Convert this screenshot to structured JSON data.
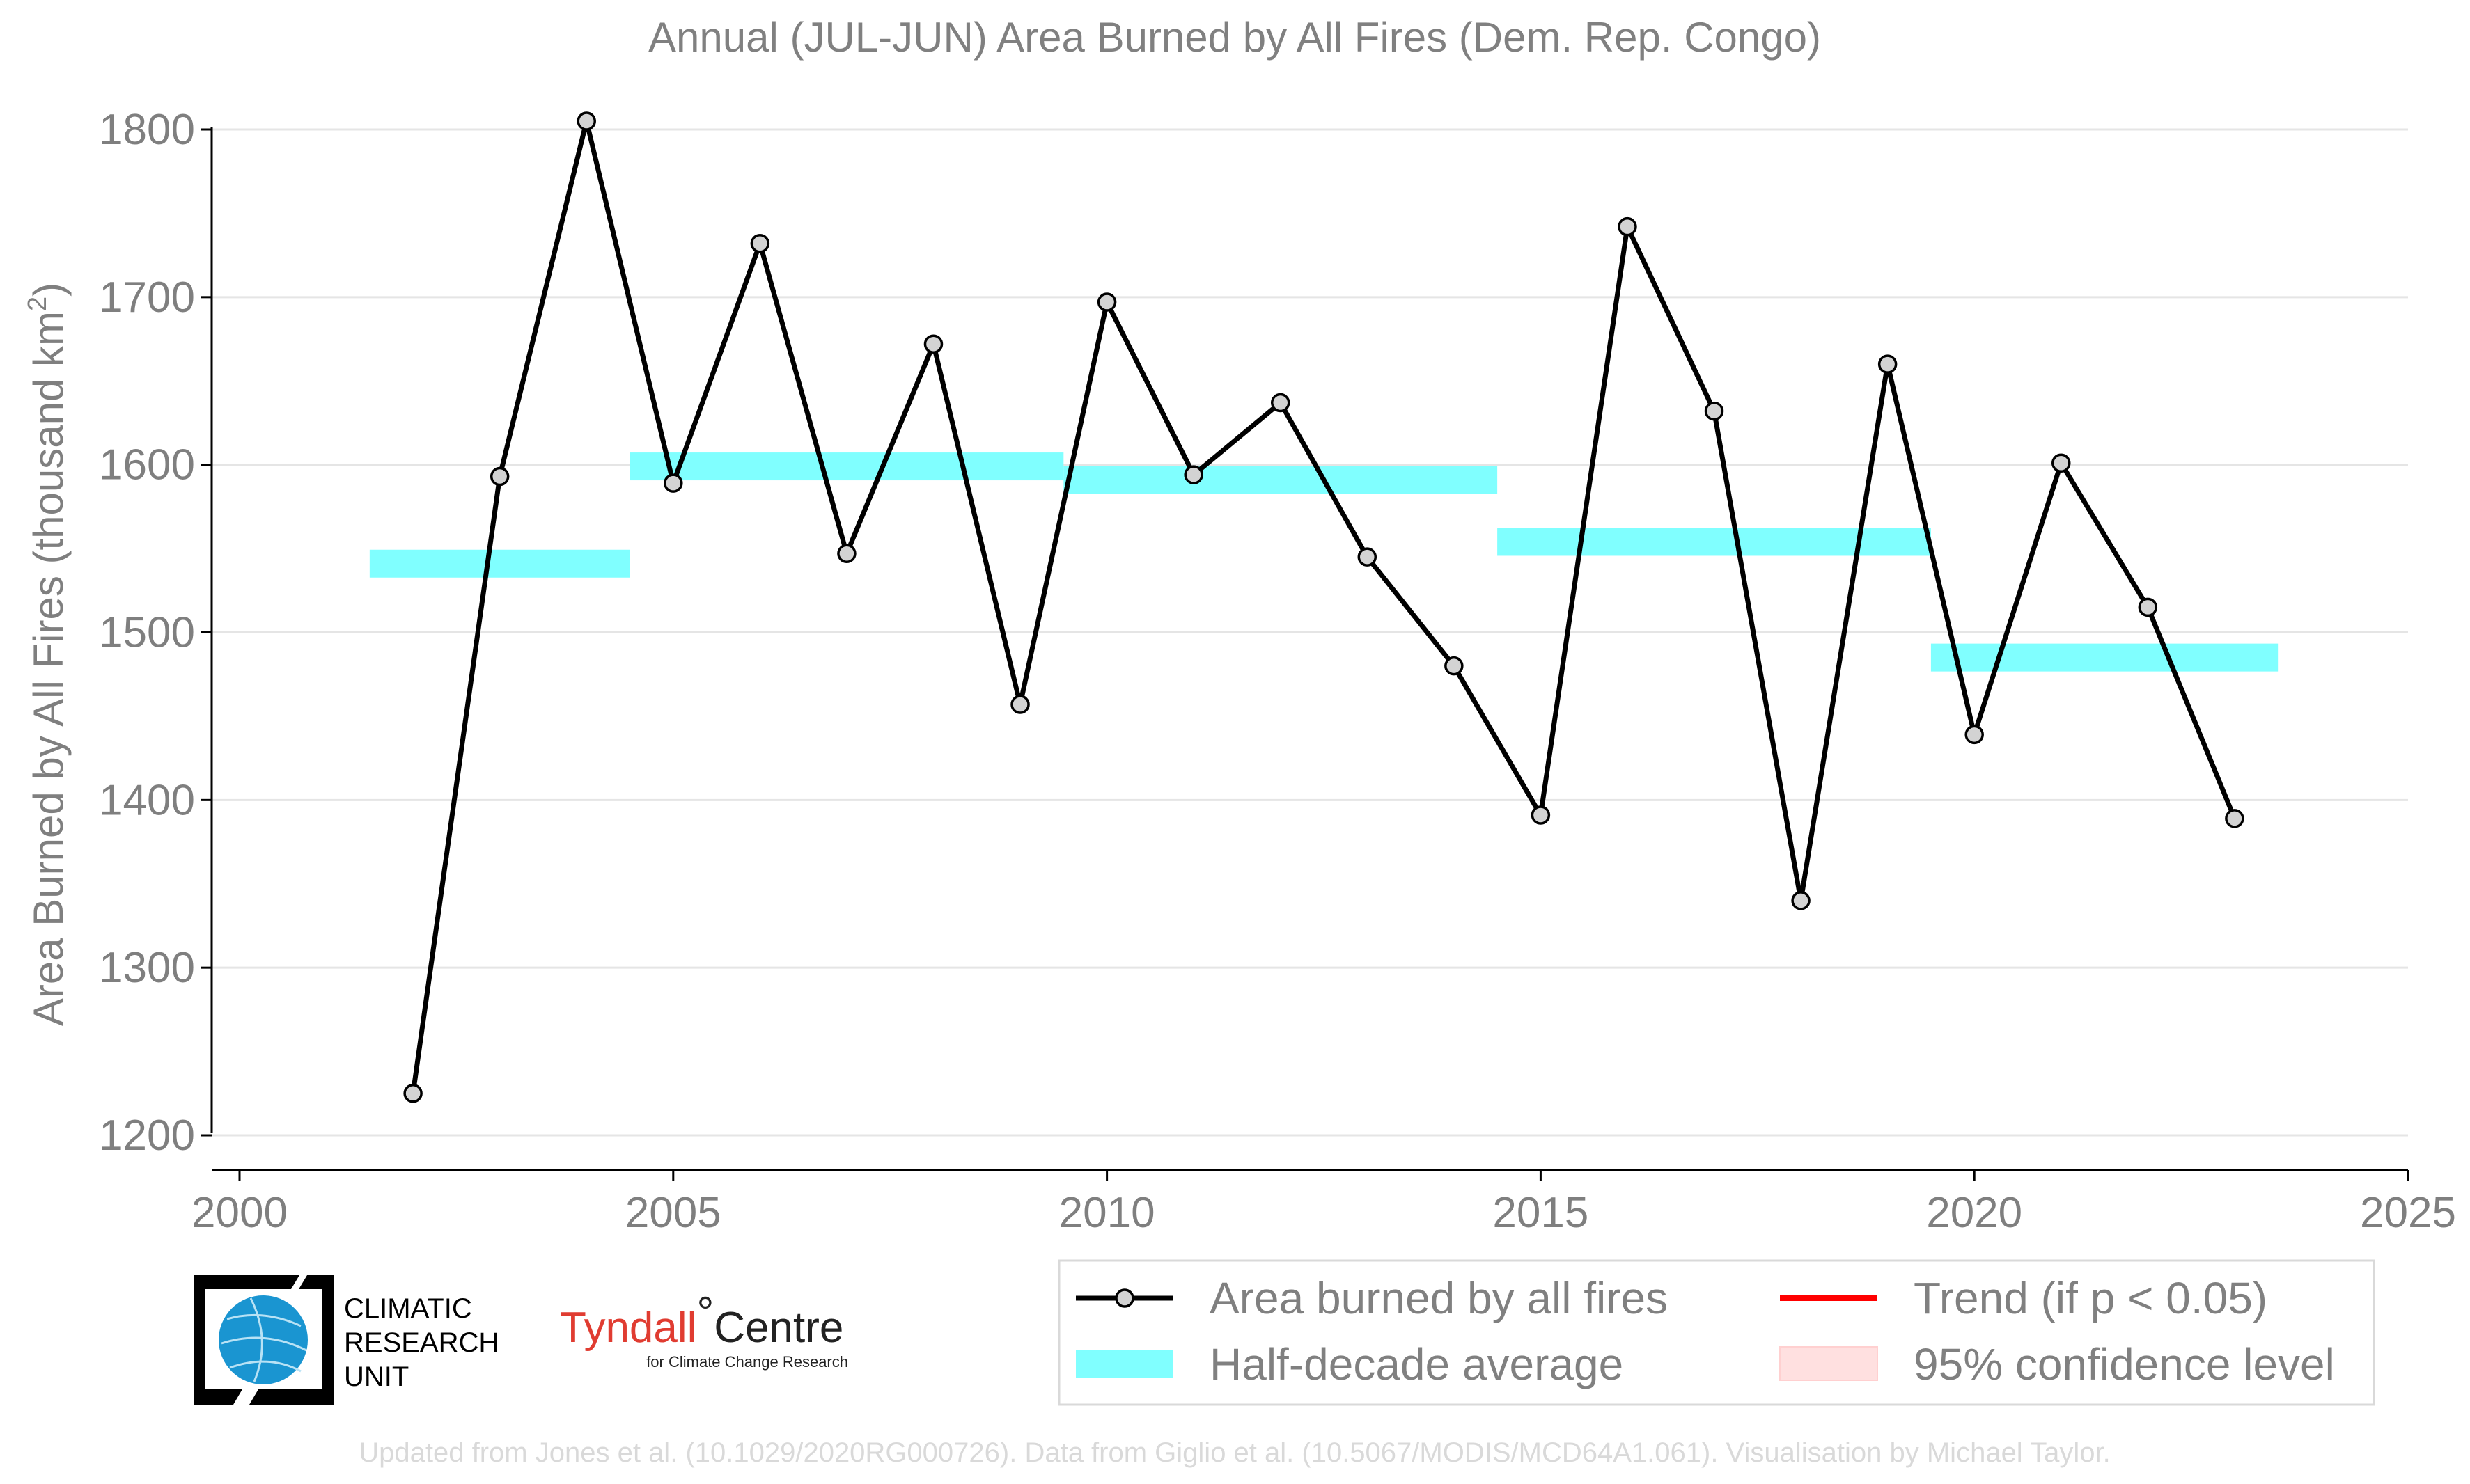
{
  "chart_data": {
    "type": "line",
    "title": "Annual (JUL-JUN) Area Burned by All Fires (Dem. Rep. Congo)",
    "ylabel_main": "Area Burned by All Fires (thousand km",
    "ylabel_sup": "2",
    "ylabel_end": ")",
    "xlabel": "",
    "xlim": [
      2000,
      2025
    ],
    "ylim": [
      1180,
      1815
    ],
    "x_ticks": [
      2000,
      2005,
      2010,
      2015,
      2020,
      2025
    ],
    "y_ticks": [
      1200,
      1300,
      1400,
      1500,
      1600,
      1700,
      1800
    ],
    "grid": "horizontal",
    "series": [
      {
        "name": "Area burned by all fires",
        "color": "#000000",
        "marker_fill": "#d3d3d3",
        "x": [
          2002,
          2003,
          2004,
          2005,
          2006,
          2007,
          2008,
          2009,
          2010,
          2011,
          2012,
          2013,
          2014,
          2015,
          2016,
          2017,
          2018,
          2019,
          2020,
          2021,
          2022,
          2023
        ],
        "y": [
          1225,
          1593,
          1805,
          1589,
          1732,
          1547,
          1672,
          1457,
          1697,
          1594,
          1637,
          1545,
          1480,
          1391,
          1742,
          1632,
          1340,
          1660,
          1439,
          1601,
          1515,
          1389
        ]
      }
    ],
    "half_decade_averages": {
      "name": "Half-decade average",
      "color": "#80ffff",
      "segments": [
        {
          "x_start": 2001.5,
          "x_end": 2004.5,
          "y": 1541
        },
        {
          "x_start": 2004.5,
          "x_end": 2009.5,
          "y": 1599
        },
        {
          "x_start": 2009.5,
          "x_end": 2014.5,
          "y": 1591
        },
        {
          "x_start": 2014.5,
          "x_end": 2019.5,
          "y": 1554
        },
        {
          "x_start": 2019.5,
          "x_end": 2023.5,
          "y": 1485
        }
      ]
    },
    "legend": {
      "placement": "bottom-right",
      "entries": [
        {
          "label": "Area burned by all fires",
          "kind": "line-marker",
          "color": "#000000"
        },
        {
          "label": "Trend (if p < 0.05)",
          "kind": "line",
          "color": "#ff0000"
        },
        {
          "label": "Half-decade average",
          "kind": "band",
          "color": "#80ffff"
        },
        {
          "label": "95% confidence level",
          "kind": "band",
          "color": "#ffe0e0"
        }
      ]
    }
  },
  "logos": {
    "cru_lines": [
      "CLIMATIC",
      "RESEARCH",
      "UNIT"
    ],
    "tyndall_main": "Tyndall",
    "tyndall_degree": "°",
    "tyndall_centre": "Centre",
    "tyndall_sub": "for Climate Change Research"
  },
  "credit": "Updated from Jones et al. (10.1029/2020RG000726). Data from Giglio et al. (10.5067/MODIS/MCD64A1.061). Visualisation by Michael Taylor."
}
